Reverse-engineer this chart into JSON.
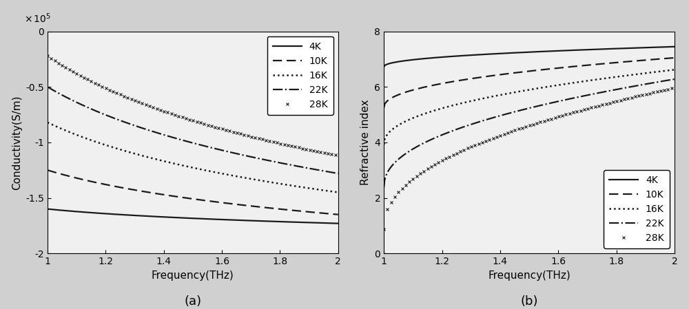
{
  "freq_min": 1.0,
  "freq_max": 2.0,
  "freq_points": 400,
  "panel_a": {
    "ylabel": "Conductivity(S/m)",
    "xlabel": "Frequency(THz)",
    "ylim": [
      -2.0,
      0.0
    ],
    "yticks": [
      0,
      -0.5,
      -1.0,
      -1.5,
      -2.0
    ],
    "xticks": [
      1.0,
      1.2,
      1.4,
      1.6,
      1.8,
      2.0
    ],
    "caption": "(a)",
    "curves": [
      {
        "label": "4K",
        "style": "solid",
        "y0": -1.6,
        "y1": -1.73
      },
      {
        "label": "10K",
        "style": "dashed",
        "y0": -1.25,
        "y1": -1.65
      },
      {
        "label": "16K",
        "style": "dotted",
        "y0": -0.82,
        "y1": -1.45
      },
      {
        "label": "22K",
        "style": "dashdot",
        "y0": -0.5,
        "y1": -1.28
      },
      {
        "label": "28K",
        "style": "x_marker",
        "y0": -0.22,
        "y1": -1.12
      }
    ]
  },
  "panel_b": {
    "ylabel": "Refractive index",
    "xlabel": "Frequency(THz)",
    "ylim": [
      0,
      8
    ],
    "yticks": [
      0,
      2,
      4,
      6,
      8
    ],
    "xticks": [
      1.0,
      1.2,
      1.4,
      1.6,
      1.8,
      2.0
    ],
    "caption": "(b)",
    "curves": [
      {
        "label": "4K",
        "style": "solid",
        "y0": 6.72,
        "y1": 7.45
      },
      {
        "label": "10K",
        "style": "dashed",
        "y0": 5.25,
        "y1": 7.05
      },
      {
        "label": "16K",
        "style": "dotted",
        "y0": 3.92,
        "y1": 6.62
      },
      {
        "label": "22K",
        "style": "dashdot",
        "y0": 2.38,
        "y1": 6.28
      },
      {
        "label": "28K",
        "style": "x_marker",
        "y0": 0.88,
        "y1": 5.97
      }
    ]
  },
  "line_color": "#1a1a1a",
  "bg_color": "#f0f0f0",
  "fig_bg_color": "#d0d0d0",
  "legend_loc_a": "upper right",
  "legend_loc_b": "lower right",
  "label_fontsize": 11,
  "tick_fontsize": 10,
  "legend_fontsize": 10,
  "caption_fontsize": 13
}
